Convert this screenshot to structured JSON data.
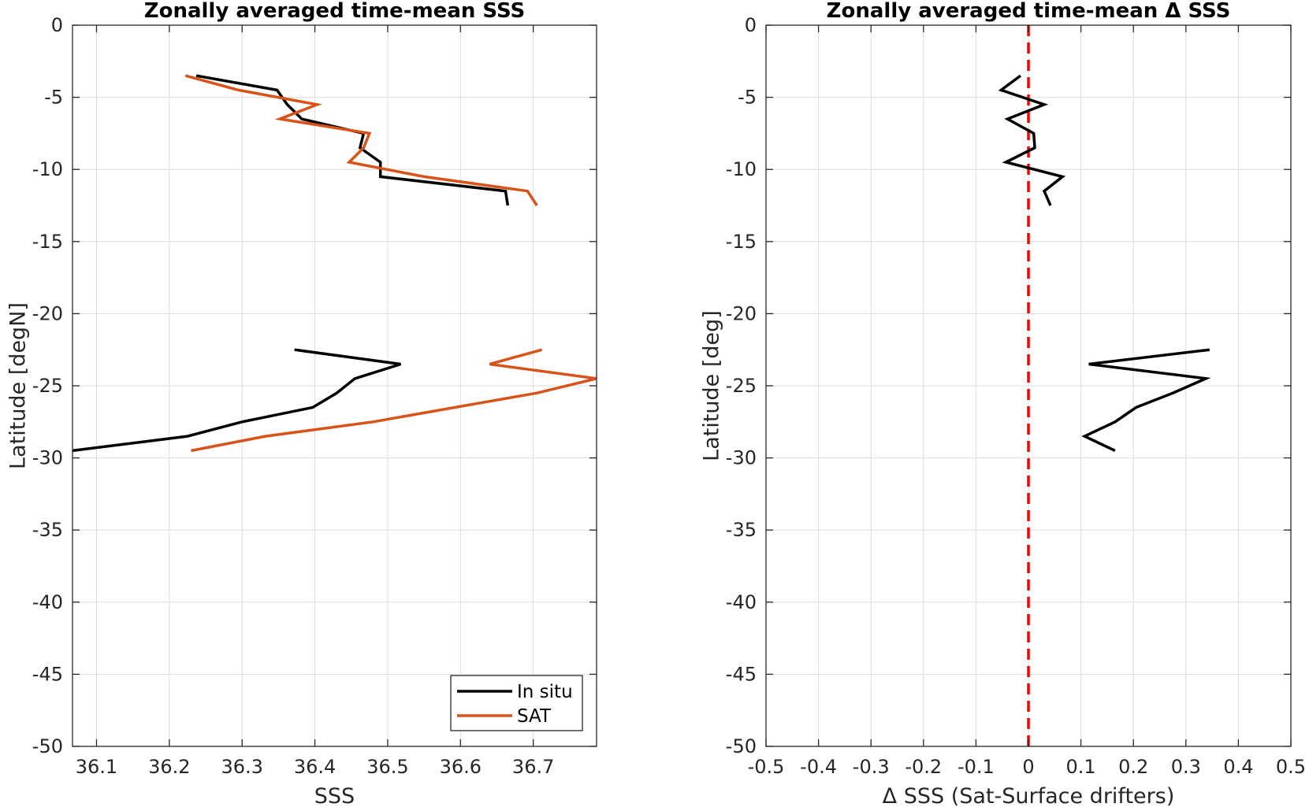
{
  "chart_data": [
    {
      "type": "line",
      "title": "Zonally averaged time-mean SSS",
      "xlabel": "SSS",
      "ylabel": "Latitude [degN]",
      "xlim": [
        36.067,
        36.787
      ],
      "ylim": [
        -50,
        0
      ],
      "xticks": [
        36.1,
        36.2,
        36.3,
        36.4,
        36.5,
        36.6,
        36.7
      ],
      "xtick_labels": [
        "36.1",
        "36.2",
        "36.3",
        "36.4",
        "36.5",
        "36.6",
        "36.7"
      ],
      "yticks": [
        0,
        -5,
        -10,
        -15,
        -20,
        -25,
        -30,
        -35,
        -40,
        -45,
        -50
      ],
      "ytick_labels": [
        "0",
        "-5",
        "-10",
        "-15",
        "-20",
        "-25",
        "-30",
        "-35",
        "-40",
        "-45",
        "-50"
      ],
      "grid": true,
      "legend": "bottom-right",
      "series": [
        {
          "name": "In situ",
          "color": "#000000",
          "segments": [
            [
              [
                36.237,
                -3.5
              ],
              [
                36.348,
                -4.5
              ],
              [
                36.362,
                -5.5
              ],
              [
                36.382,
                -6.5
              ],
              [
                36.467,
                -7.5
              ],
              [
                36.462,
                -8.5
              ],
              [
                36.49,
                -9.5
              ],
              [
                36.49,
                -10.5
              ],
              [
                36.662,
                -11.5
              ],
              [
                36.665,
                -12.5
              ]
            ],
            [
              [
                36.372,
                -22.5
              ],
              [
                36.518,
                -23.5
              ],
              [
                36.455,
                -24.5
              ],
              [
                36.43,
                -25.5
              ],
              [
                36.397,
                -26.5
              ],
              [
                36.3,
                -27.5
              ],
              [
                36.225,
                -28.5
              ],
              [
                36.067,
                -29.5
              ]
            ]
          ]
        },
        {
          "name": "SAT",
          "color": "#d95319",
          "segments": [
            [
              [
                36.222,
                -3.5
              ],
              [
                36.295,
                -4.5
              ],
              [
                36.403,
                -5.5
              ],
              [
                36.352,
                -6.5
              ],
              [
                36.475,
                -7.5
              ],
              [
                36.467,
                -8.5
              ],
              [
                36.447,
                -9.5
              ],
              [
                36.55,
                -10.5
              ],
              [
                36.692,
                -11.5
              ],
              [
                36.705,
                -12.5
              ]
            ],
            [
              [
                36.712,
                -22.5
              ],
              [
                36.64,
                -23.5
              ],
              [
                36.787,
                -24.5
              ],
              [
                36.705,
                -25.5
              ],
              [
                36.592,
                -26.5
              ],
              [
                36.48,
                -27.5
              ],
              [
                36.332,
                -28.5
              ],
              [
                36.23,
                -29.5
              ]
            ]
          ]
        }
      ]
    },
    {
      "type": "line",
      "title": "Zonally averaged time-mean Δ SSS",
      "xlabel": "Δ SSS (Sat-Surface drifters)",
      "ylabel": "Latitude [deg]",
      "xlim": [
        -0.5,
        0.5
      ],
      "ylim": [
        -50,
        0
      ],
      "xticks": [
        -0.5,
        -0.4,
        -0.3,
        -0.2,
        -0.1,
        0,
        0.1,
        0.2,
        0.3,
        0.4,
        0.5
      ],
      "xtick_labels": [
        "-0.5",
        "-0.4",
        "-0.3",
        "-0.2",
        "-0.1",
        "0",
        "0.1",
        "0.2",
        "0.3",
        "0.4",
        "0.5"
      ],
      "yticks": [
        0,
        -5,
        -10,
        -15,
        -20,
        -25,
        -30,
        -35,
        -40,
        -45,
        -50
      ],
      "ytick_labels": [
        "0",
        "-5",
        "-10",
        "-15",
        "-20",
        "-25",
        "-30",
        "-35",
        "-40",
        "-45",
        "-50"
      ],
      "grid": true,
      "reference_line": {
        "x": 0,
        "color": "#ff0000",
        "style": "dashed"
      },
      "series": [
        {
          "color": "#000000",
          "segments": [
            [
              [
                -0.015,
                -3.5
              ],
              [
                -0.052,
                -4.5
              ],
              [
                0.03,
                -5.5
              ],
              [
                -0.04,
                -6.5
              ],
              [
                0.01,
                -7.5
              ],
              [
                0.012,
                -8.5
              ],
              [
                -0.043,
                -9.5
              ],
              [
                0.065,
                -10.5
              ],
              [
                0.03,
                -11.5
              ],
              [
                0.042,
                -12.5
              ]
            ],
            [
              [
                0.345,
                -22.5
              ],
              [
                0.115,
                -23.5
              ],
              [
                0.338,
                -24.5
              ],
              [
                0.275,
                -25.5
              ],
              [
                0.205,
                -26.5
              ],
              [
                0.165,
                -27.5
              ],
              [
                0.107,
                -28.5
              ],
              [
                0.165,
                -29.5
              ]
            ]
          ]
        }
      ]
    }
  ]
}
